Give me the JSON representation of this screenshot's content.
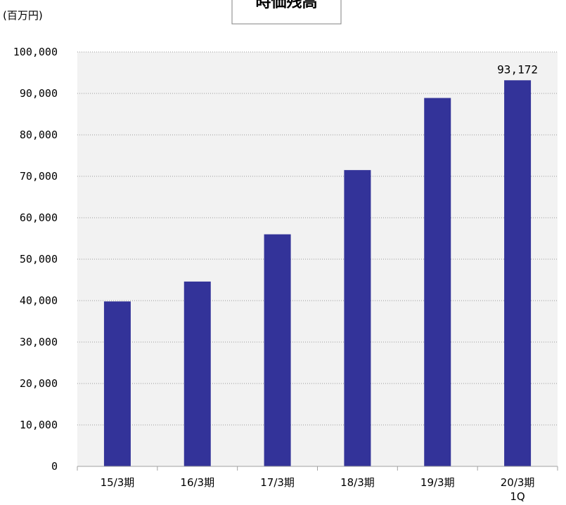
{
  "chart_data": {
    "type": "bar",
    "title": "時価残高",
    "ylabel": "(百万円)",
    "xlabel": "",
    "categories": [
      [
        "15/3期"
      ],
      [
        "16/3期"
      ],
      [
        "17/3期"
      ],
      [
        "18/3期"
      ],
      [
        "19/3期"
      ],
      [
        "20/3期",
        "1Q"
      ]
    ],
    "values": [
      39800,
      44600,
      56000,
      71500,
      88900,
      93172
    ],
    "data_labels": [
      "",
      "",
      "",
      "",
      "",
      "93,172"
    ],
    "ylim": [
      0,
      100000
    ],
    "yticks": [
      0,
      10000,
      20000,
      30000,
      40000,
      50000,
      60000,
      70000,
      80000,
      90000,
      100000
    ],
    "ytick_labels": [
      "0",
      "10,000",
      "20,000",
      "30,000",
      "40,000",
      "50,000",
      "60,000",
      "70,000",
      "80,000",
      "90,000",
      "100,000"
    ],
    "grid": true,
    "legend": "none",
    "bar_color": "#333399",
    "plot_background": "#f2f2f2"
  }
}
